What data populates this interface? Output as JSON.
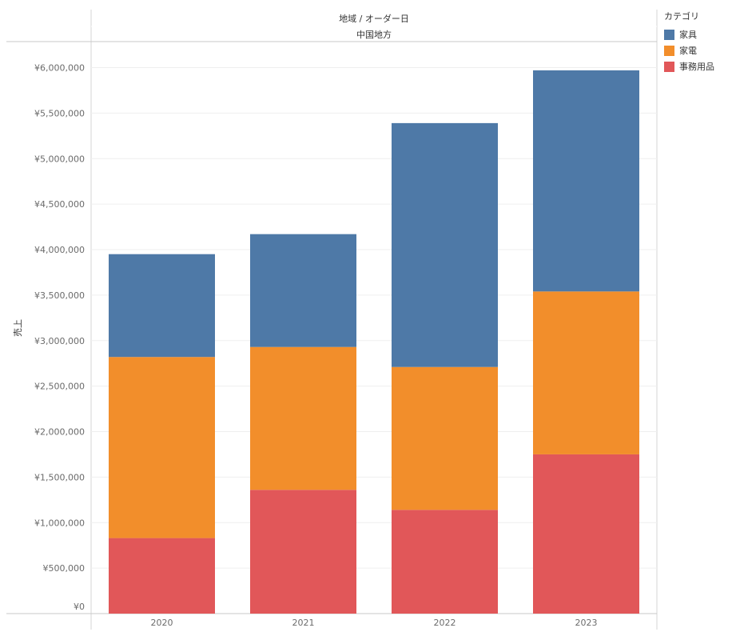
{
  "header": {
    "title": "地域 / オーダー日",
    "subtitle": "中国地方"
  },
  "legend": {
    "title": "カテゴリ",
    "items": [
      {
        "label": "家具",
        "color": "#4e79a7"
      },
      {
        "label": "家電",
        "color": "#f28e2b"
      },
      {
        "label": "事務用品",
        "color": "#e15759"
      }
    ]
  },
  "chart_data": {
    "type": "bar",
    "stacked": true,
    "categories": [
      "2020",
      "2021",
      "2022",
      "2023"
    ],
    "series": [
      {
        "name": "事務用品",
        "color": "#e15759",
        "values": [
          830000,
          1360000,
          1140000,
          1750000
        ]
      },
      {
        "name": "家電",
        "color": "#f28e2b",
        "values": [
          1990000,
          1570000,
          1570000,
          1790000
        ]
      },
      {
        "name": "家具",
        "color": "#4e79a7",
        "values": [
          1130000,
          1240000,
          2680000,
          2430000
        ]
      }
    ],
    "ylabel": "売上",
    "ylim": [
      0,
      6000000
    ],
    "yticks": [
      0,
      500000,
      1000000,
      1500000,
      2000000,
      2500000,
      3000000,
      3500000,
      4000000,
      4500000,
      5000000,
      5500000,
      6000000
    ],
    "ytick_labels": [
      "¥0",
      "¥500,000",
      "¥1,000,000",
      "¥1,500,000",
      "¥2,000,000",
      "¥2,500,000",
      "¥3,000,000",
      "¥3,500,000",
      "¥4,000,000",
      "¥4,500,000",
      "¥5,000,000",
      "¥5,500,000",
      "¥6,000,000"
    ],
    "grid": true,
    "legend_position": "right"
  }
}
